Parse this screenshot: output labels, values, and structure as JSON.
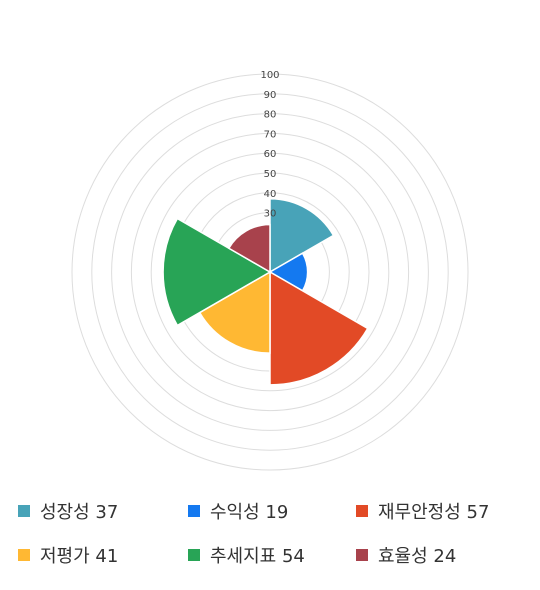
{
  "chart_data": {
    "type": "polar_area",
    "radial_ticks": [
      "100",
      "90",
      "80",
      "70",
      "60",
      "50",
      "40",
      "30"
    ],
    "r_max": 100,
    "grid": true,
    "legend_position": "bottom",
    "categories": [
      "성장성",
      "수익성",
      "재무안정성",
      "저평가",
      "추세지표",
      "효율성"
    ],
    "values": [
      37,
      19,
      57,
      41,
      54,
      24
    ],
    "colors": [
      "#48a3b8",
      "#1479f0",
      "#e24a26",
      "#ffb833",
      "#28a456",
      "#a8424c"
    ],
    "legend_labels": [
      "성장성 37",
      "수익성 19",
      "재무안정성 57",
      "저평가 41",
      "추세지표 54",
      "효율성 24"
    ]
  }
}
